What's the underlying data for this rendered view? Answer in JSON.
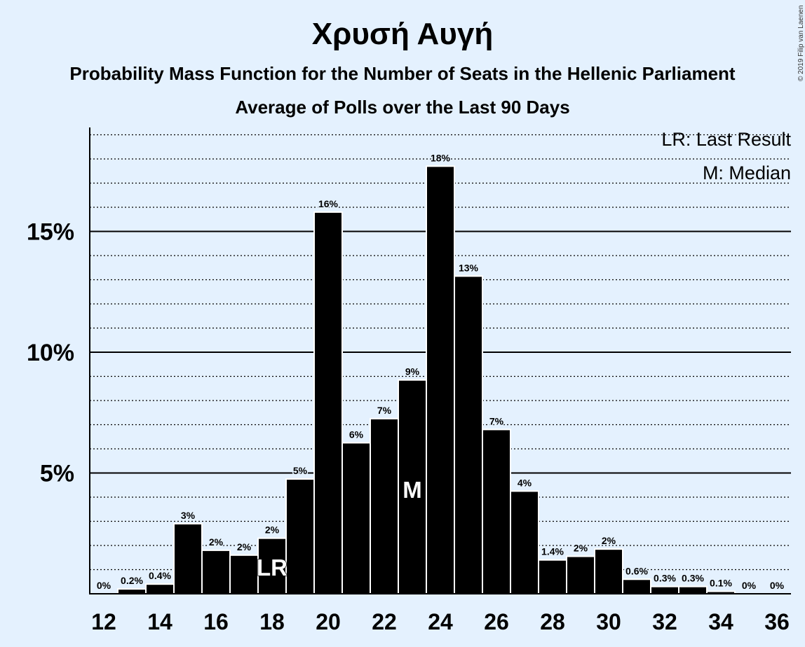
{
  "title": "Χρυσή Αυγή",
  "subtitle": "Probability Mass Function for the Number of Seats in the Hellenic Parliament",
  "subtitle2": "Average of Polls over the Last 90 Days",
  "copyright": "© 2019 Filip van Laenen",
  "legend": {
    "last_result": "LR: Last Result",
    "median": "M: Median"
  },
  "colors": {
    "background": "#e4f1fe",
    "bar": "#000000",
    "bar_border": "#ffffff",
    "text": "#000000"
  },
  "chart_data": {
    "type": "bar",
    "categories": [
      12,
      13,
      14,
      15,
      16,
      17,
      18,
      19,
      20,
      21,
      22,
      23,
      24,
      25,
      26,
      27,
      28,
      29,
      30,
      31,
      32,
      33,
      34,
      35,
      36
    ],
    "values": [
      0,
      0.2,
      0.4,
      2.9,
      1.8,
      1.6,
      2.3,
      4.75,
      15.8,
      6.25,
      7.25,
      8.85,
      17.7,
      13.15,
      6.8,
      4.25,
      1.4,
      1.55,
      1.85,
      0.6,
      0.3,
      0.3,
      0.1,
      0,
      0
    ],
    "labels": [
      "0%",
      "0.2%",
      "0.4%",
      "3%",
      "2%",
      "2%",
      "2%",
      "5%",
      "16%",
      "6%",
      "7%",
      "9%",
      "18%",
      "13%",
      "7%",
      "4%",
      "1.4%",
      "2%",
      "2%",
      "0.6%",
      "0.3%",
      "0.3%",
      "0.1%",
      "0%",
      "0%"
    ],
    "x_tick_labels": [
      "12",
      "14",
      "16",
      "18",
      "20",
      "22",
      "24",
      "26",
      "28",
      "30",
      "32",
      "34",
      "36"
    ],
    "y_ticks": [
      5,
      10,
      15
    ],
    "y_tick_labels": [
      "5%",
      "10%",
      "15%"
    ],
    "ylim": [
      0,
      19.25
    ],
    "minor_grid_step": 1,
    "last_result": {
      "seat": 18,
      "label": "LR"
    },
    "median": {
      "seat": 23,
      "label": "M"
    }
  }
}
